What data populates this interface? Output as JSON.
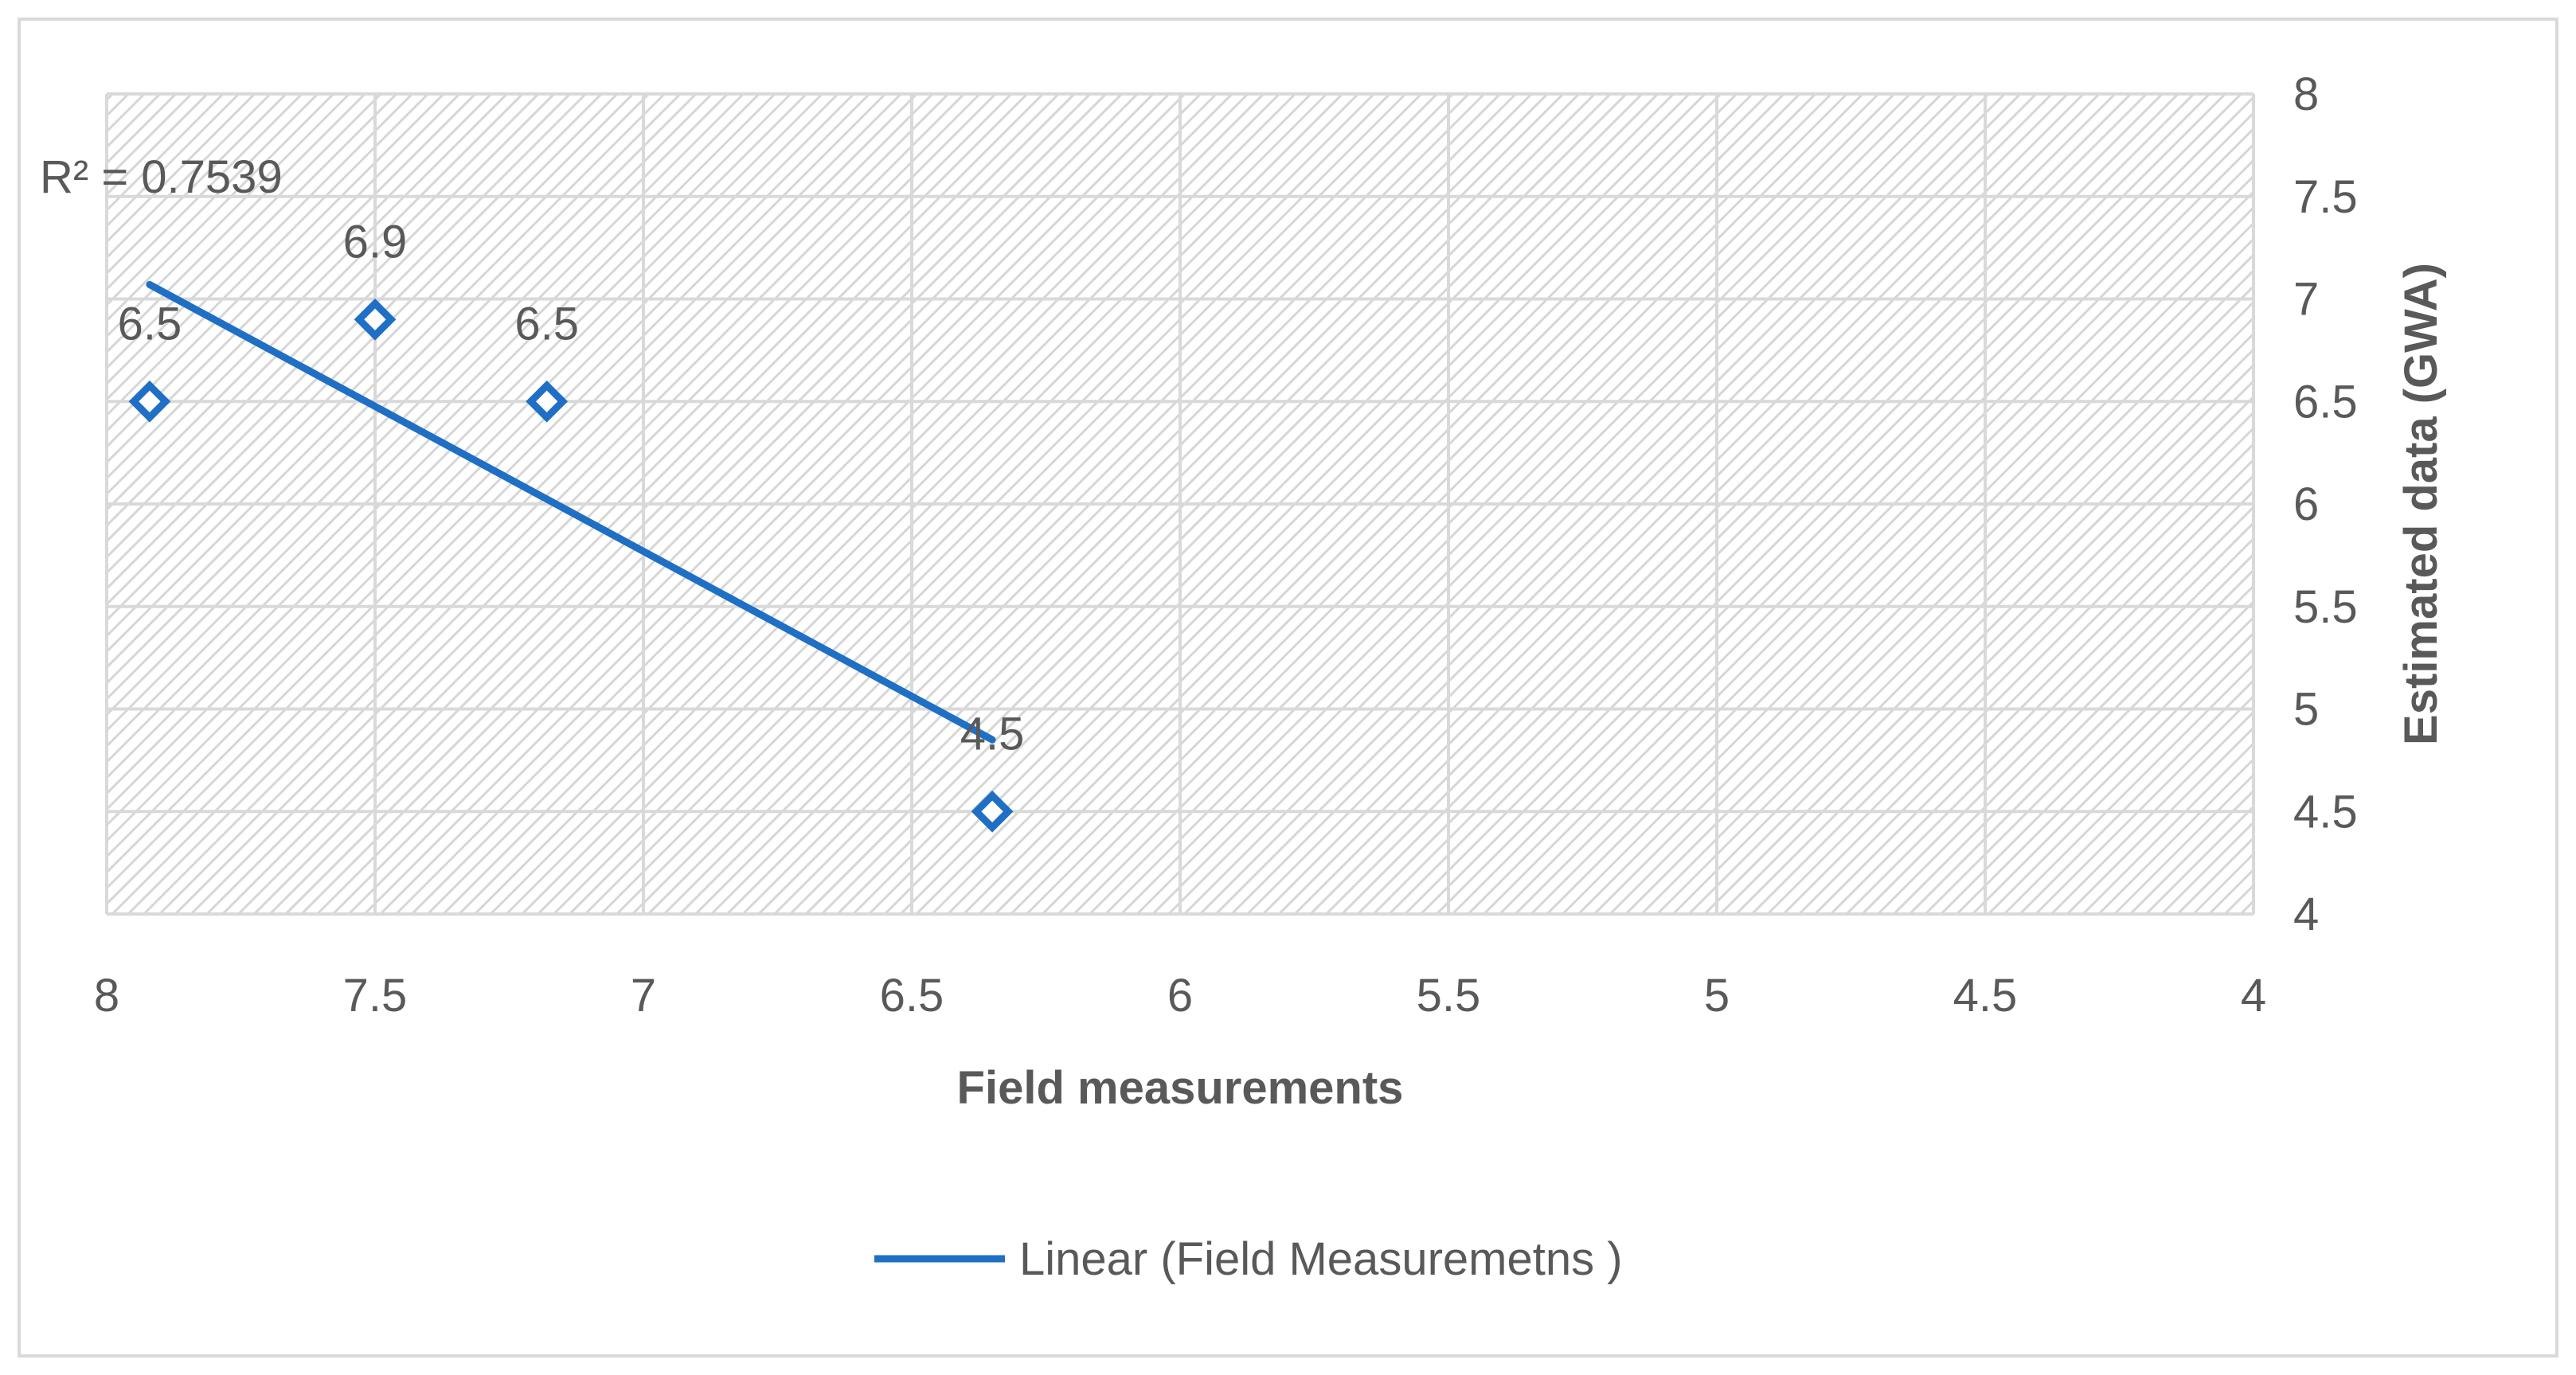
{
  "chart_data": {
    "type": "scatter",
    "xlabel": "Field measurements",
    "ylabel": "Estimated data (GWA)",
    "xlim": [
      8,
      4
    ],
    "x_reversed": true,
    "ylim": [
      4,
      8
    ],
    "y_axis_position": "right",
    "x_ticks": [
      "8",
      "7.5",
      "7",
      "6.5",
      "6",
      "5.5",
      "5",
      "4.5",
      "4"
    ],
    "y_ticks": [
      "4",
      "4.5",
      "5",
      "5.5",
      "6",
      "6.5",
      "7",
      "7.5",
      "8"
    ],
    "grid": true,
    "plot_fill": "hatched",
    "series": [
      {
        "marker": "diamond-open",
        "color": "#1f6fc5",
        "points": [
          {
            "x": 7.92,
            "y": 6.5,
            "label": "6.5"
          },
          {
            "x": 7.5,
            "y": 6.9,
            "label": "6.9"
          },
          {
            "x": 7.18,
            "y": 6.5,
            "label": "6.5"
          },
          {
            "x": 6.35,
            "y": 4.5,
            "label": "4.5"
          }
        ]
      }
    ],
    "trendline": {
      "name": "Linear (Field Measuremetns )",
      "type": "linear",
      "color": "#1f6fc5",
      "start": {
        "x": 7.92,
        "y": 7.07
      },
      "end": {
        "x": 6.35,
        "y": 4.85
      }
    },
    "annotation": "R² = 0.7539",
    "legend": {
      "position": "bottom",
      "label": "Linear (Field Measuremetns )"
    },
    "colors": {
      "series": "#1f6fc5",
      "grid": "#d9d9d9",
      "axis_text": "#595959",
      "hatch": "#d6d6d6",
      "frame": "#d9d9d9"
    }
  }
}
